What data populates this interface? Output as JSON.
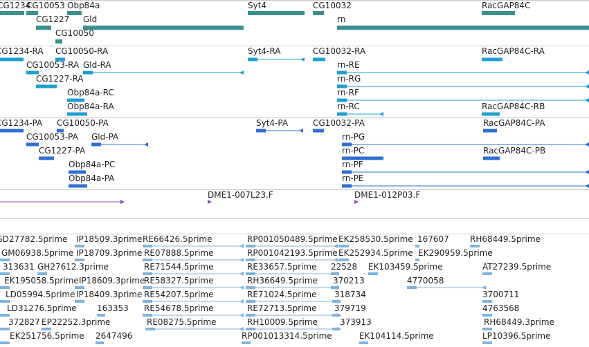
{
  "colors": {
    "gene": "#3c8f8f",
    "mrna": "#1f9fcf",
    "protein": "#2f6fd0",
    "clone": "#8a4fd0",
    "est": "#7fb3dd",
    "divider": "#c4c8cc"
  },
  "tracks": [
    {
      "name": "genes",
      "color_key": "gene",
      "features": [
        {
          "label": "CG1234",
          "bars": [
            [
              0,
              35
            ]
          ]
        },
        {
          "label": "CG10053",
          "bars": [
            [
              38,
              55
            ]
          ]
        },
        {
          "label": "Obp84a",
          "bars": [
            [
              97,
              118
            ]
          ]
        },
        {
          "label": "Syt4",
          "bars": [
            [
              358,
              440
            ]
          ]
        },
        {
          "label": "CG10032",
          "bars": [
            [
              452,
              468
            ]
          ]
        },
        {
          "label": "RacGAP84C",
          "bars": [
            [
              696,
              744
            ]
          ]
        },
        {
          "label": "CG1227",
          "bars": [
            [
              52,
              74
            ]
          ]
        },
        {
          "label": "Gld",
          "bars": [
            [
              120,
              352
            ]
          ]
        },
        {
          "label": "rn",
          "bars": [
            [
              487,
              851
            ]
          ]
        },
        {
          "label": "CG10050",
          "bars": [
            [
              80,
              90
            ]
          ]
        }
      ]
    },
    {
      "name": "mrna",
      "color_key": "mrna",
      "features": [
        {
          "label": "CG1234-RA",
          "bars": [
            [
              0,
              34
            ]
          ]
        },
        {
          "label": "CG10050-RA",
          "bars": [
            [
              80,
              94
            ]
          ]
        },
        {
          "label": "Syt4-RA",
          "bars": [
            [
              358,
              440
            ]
          ]
        },
        {
          "label": "CG10032-RA",
          "bars": [
            [
              452,
              470
            ]
          ]
        },
        {
          "label": "RacGAP84C-RA",
          "bars": [
            [
              696,
              726
            ]
          ]
        },
        {
          "label": "CG10053-RA",
          "bars": [
            [
              38,
              56
            ]
          ]
        },
        {
          "label": "Gld-RA",
          "bars": [
            [
              120,
              352
            ]
          ]
        },
        {
          "label": "rn-RE",
          "bars": [
            [
              487,
              851
            ]
          ]
        },
        {
          "label": "CG1227-RA",
          "bars": [
            [
              52,
              82
            ]
          ]
        },
        {
          "label": "rn-RG",
          "bars": [
            [
              487,
              851
            ]
          ]
        },
        {
          "label": "Obp84a-RC",
          "bars": [
            [
              97,
              122
            ]
          ]
        },
        {
          "label": "rn-RF",
          "bars": [
            [
              487,
              851
            ]
          ]
        },
        {
          "label": "Obp84a-RA",
          "bars": [
            [
              97,
              126
            ]
          ]
        },
        {
          "label": "rn-RC",
          "bars": [
            [
              487,
              554
            ]
          ]
        },
        {
          "label": "RacGAP84C-RB",
          "bars": [
            [
              696,
              722
            ]
          ]
        }
      ]
    },
    {
      "name": "protein",
      "color_key": "protein",
      "features": [
        {
          "label": "CG1234-PA",
          "bars": [
            [
              0,
              34
            ]
          ]
        },
        {
          "label": "CG10050-PA",
          "bars": [
            [
              82,
              92
            ]
          ]
        },
        {
          "label": "Syt4-PA",
          "bars": [
            [
              370,
              438
            ]
          ]
        },
        {
          "label": "CG10032-PA",
          "bars": [
            [
              452,
              468
            ]
          ]
        },
        {
          "label": "RacGAP84C-PA",
          "bars": [
            [
              698,
              718
            ]
          ]
        },
        {
          "label": "CG10053-PA",
          "bars": [
            [
              38,
              56
            ]
          ]
        },
        {
          "label": "Gld-PA",
          "bars": [
            [
              132,
              214
            ]
          ]
        },
        {
          "label": "rn-PG",
          "bars": [
            [
              494,
              851
            ]
          ]
        },
        {
          "label": "CG1227-PA",
          "bars": [
            [
              56,
              78
            ]
          ]
        },
        {
          "label": "rn-PC",
          "bars": [
            [
              494,
              554
            ]
          ]
        },
        {
          "label": "RacGAP84C-PB",
          "bars": [
            [
              698,
              722
            ]
          ]
        },
        {
          "label": "Obp84a-PC",
          "bars": [
            [
              99,
              124
            ]
          ]
        },
        {
          "label": "rn-PF",
          "bars": [
            [
              494,
              851
            ]
          ]
        },
        {
          "label": "Obp84a-PA",
          "bars": [
            [
              99,
              126
            ]
          ]
        },
        {
          "label": "rn-PE",
          "bars": [
            [
              494,
              851
            ]
          ]
        }
      ]
    },
    {
      "name": "clones",
      "color_key": "clone",
      "features": [
        {
          "label": "",
          "bars": [
            [
              0,
              180
            ]
          ]
        },
        {
          "label": "DME1-007L23.F",
          "bars": [
            [
              300,
              306
            ]
          ]
        },
        {
          "label": "DME1-012P03.F",
          "bars": [
            [
              512,
              518
            ]
          ]
        }
      ]
    },
    {
      "name": "ests",
      "color_key": "est",
      "features": [
        {
          "label": "SD27782.5prime"
        },
        {
          "label": "IP18509.3prime"
        },
        {
          "label": "RE66426.5prime"
        },
        {
          "label": "RP001050489.5prime"
        },
        {
          "label": "EK258530.5prime"
        },
        {
          "label": "167607"
        },
        {
          "label": "RH68449.5prime"
        },
        {
          "label": "GM06938.5prime"
        },
        {
          "label": "IP18709.3prime"
        },
        {
          "label": "RE07888.5prime"
        },
        {
          "label": "RP001042193.5prime"
        },
        {
          "label": "EK252934.5prime"
        },
        {
          "label": "EK290959.5prime"
        },
        {
          "label": "313631"
        },
        {
          "label": "GH27612.3prime"
        },
        {
          "label": "RE71544.5prime"
        },
        {
          "label": "RE33657.5prime"
        },
        {
          "label": "22528"
        },
        {
          "label": "EK103459.5prime"
        },
        {
          "label": "AT27239.5prime"
        },
        {
          "label": "EK195058.5prime"
        },
        {
          "label": "IP18609.3prime"
        },
        {
          "label": "RE58327.5prime"
        },
        {
          "label": "RH36649.5prime"
        },
        {
          "label": "370213"
        },
        {
          "label": "4770058"
        },
        {
          "label": "LD05994.5prime"
        },
        {
          "label": "IP18409.3prime"
        },
        {
          "label": "RE54207.5prime"
        },
        {
          "label": "RE71024.5prime"
        },
        {
          "label": "318734"
        },
        {
          "label": "3700711"
        },
        {
          "label": "LD31276.5prime"
        },
        {
          "label": "163353"
        },
        {
          "label": "RE54678.5prime"
        },
        {
          "label": "RE72713.5prime"
        },
        {
          "label": "379719"
        },
        {
          "label": "4763568"
        },
        {
          "label": "372827"
        },
        {
          "label": "EP22252.3prime"
        },
        {
          "label": "RE08275.5prime"
        },
        {
          "label": "RH10009.5prime"
        },
        {
          "label": "373913"
        },
        {
          "label": "RH68449.3prime"
        },
        {
          "label": "EK251756.5prime"
        },
        {
          "label": "2647496"
        },
        {
          "label": "RP001013314.5prime"
        },
        {
          "label": "EK104114.5prime"
        },
        {
          "label": "LP10396.5prime"
        }
      ]
    }
  ]
}
